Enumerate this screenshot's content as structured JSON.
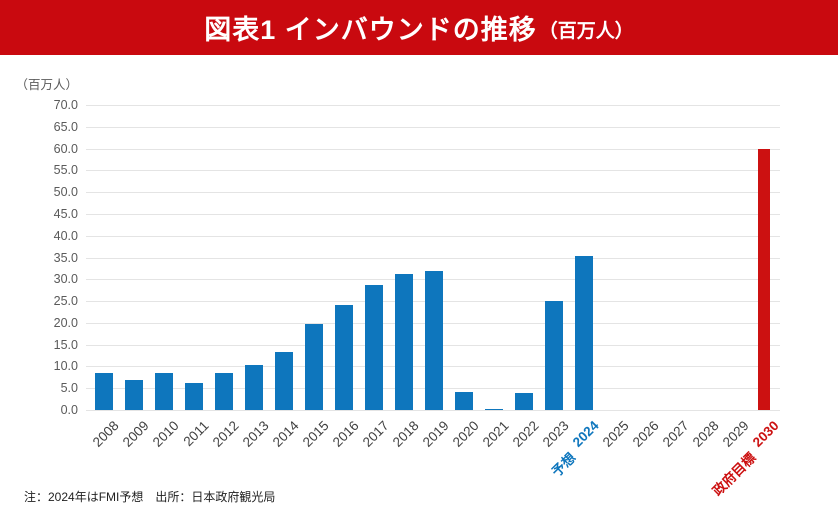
{
  "header": {
    "title_main": "図表1 インバウンドの推移",
    "title_unit": "（百万人）",
    "bg_color": "#c9090f",
    "text_color": "#ffffff"
  },
  "footnote": "注：2024年はFMI予想　出所：日本政府観光局",
  "chart_data": {
    "type": "bar",
    "title": "図表1 インバウンドの推移（百万人）",
    "ylabel": "（百万人）",
    "xlabel": "",
    "ylim": [
      0,
      70
    ],
    "ytick_step": 5,
    "yticks": [
      "70.0",
      "65.0",
      "60.0",
      "55.0",
      "50.0",
      "45.0",
      "40.0",
      "35.0",
      "30.0",
      "25.0",
      "20.0",
      "15.0",
      "10.0",
      "5.0",
      "0.0"
    ],
    "grid": true,
    "legend": "none",
    "colors": {
      "bar_blue": "#0e76bd",
      "bar_red": "#cc1111",
      "gridline": "#e4e4e4",
      "ytick_text": "#5a5a5a",
      "xtick_text": "#3f3f3f",
      "forecast_text": "#0e76bd",
      "target_text": "#cc1111"
    },
    "bars": [
      {
        "category": "2008",
        "value": 8.4
      },
      {
        "category": "2009",
        "value": 6.8
      },
      {
        "category": "2010",
        "value": 8.6
      },
      {
        "category": "2011",
        "value": 6.2
      },
      {
        "category": "2012",
        "value": 8.4
      },
      {
        "category": "2013",
        "value": 10.4
      },
      {
        "category": "2014",
        "value": 13.4
      },
      {
        "category": "2015",
        "value": 19.7
      },
      {
        "category": "2016",
        "value": 24.0
      },
      {
        "category": "2017",
        "value": 28.7
      },
      {
        "category": "2018",
        "value": 31.2
      },
      {
        "category": "2019",
        "value": 31.9
      },
      {
        "category": "2020",
        "value": 4.1
      },
      {
        "category": "2021",
        "value": 0.3
      },
      {
        "category": "2022",
        "value": 3.8
      },
      {
        "category": "2023",
        "value": 25.1
      },
      {
        "category": "2024",
        "value": 35.4,
        "highlight": "forecast",
        "sublabel": "予想"
      },
      {
        "category": "2025",
        "value": null
      },
      {
        "category": "2026",
        "value": null
      },
      {
        "category": "2027",
        "value": null
      },
      {
        "category": "2028",
        "value": null
      },
      {
        "category": "2029",
        "value": null
      },
      {
        "category": "2030",
        "value": 60.0,
        "highlight": "target",
        "sublabel": "政府目標"
      }
    ]
  }
}
